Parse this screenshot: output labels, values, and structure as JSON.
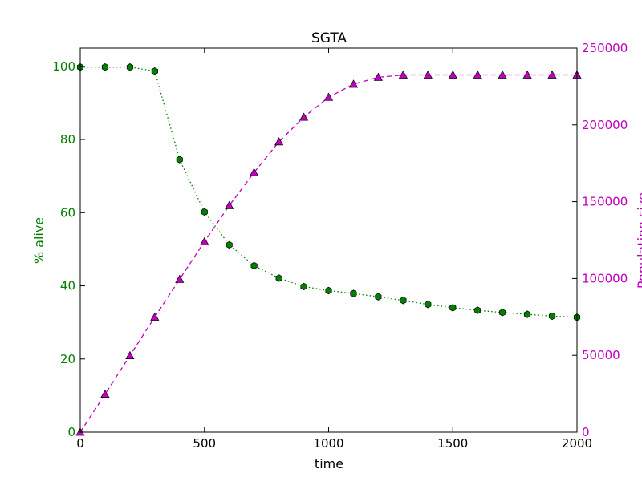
{
  "chart_data": {
    "type": "line",
    "title": "SGTA",
    "xlabel": "time",
    "ylabel_left": "% alive",
    "ylabel_right": "Population size",
    "xlim": [
      0,
      2000
    ],
    "ylim_left": [
      0,
      105
    ],
    "ylim_right": [
      0,
      250000
    ],
    "x_ticks": [
      0,
      500,
      1000,
      1500,
      2000
    ],
    "y_left_ticks": [
      0,
      20,
      40,
      60,
      80,
      100
    ],
    "y_right_ticks": [
      0,
      50000,
      100000,
      150000,
      200000,
      250000
    ],
    "grid": false,
    "colors": {
      "left_axis": "#008000",
      "right_axis": "#bf00bf",
      "axes": "#000000"
    },
    "series": [
      {
        "axis": "left",
        "marker": "hexagon",
        "linestyle": "dotted",
        "color": "#008000",
        "x": [
          0,
          100,
          200,
          300,
          400,
          500,
          600,
          700,
          800,
          900,
          1000,
          1100,
          1200,
          1300,
          1400,
          1500,
          1600,
          1700,
          1800,
          1900,
          2000
        ],
        "values": [
          99.8,
          99.8,
          99.8,
          98.7,
          74.5,
          60.2,
          51.2,
          45.5,
          42.1,
          39.8,
          38.7,
          37.9,
          37.0,
          36.0,
          34.9,
          34.0,
          33.3,
          32.7,
          32.2,
          31.7,
          31.4
        ]
      },
      {
        "axis": "right",
        "marker": "triangle",
        "linestyle": "dashed",
        "color": "#bf00bf",
        "x": [
          0,
          100,
          200,
          300,
          400,
          500,
          600,
          700,
          800,
          900,
          1000,
          1100,
          1200,
          1300,
          1400,
          1500,
          1600,
          1700,
          1800,
          1900,
          2000
        ],
        "values": [
          0,
          24700,
          49800,
          74900,
          99500,
          124000,
          147500,
          169000,
          189000,
          205000,
          218000,
          226500,
          231000,
          232500,
          232500,
          232500,
          232500,
          232500,
          232500,
          232500,
          232500
        ]
      }
    ]
  }
}
